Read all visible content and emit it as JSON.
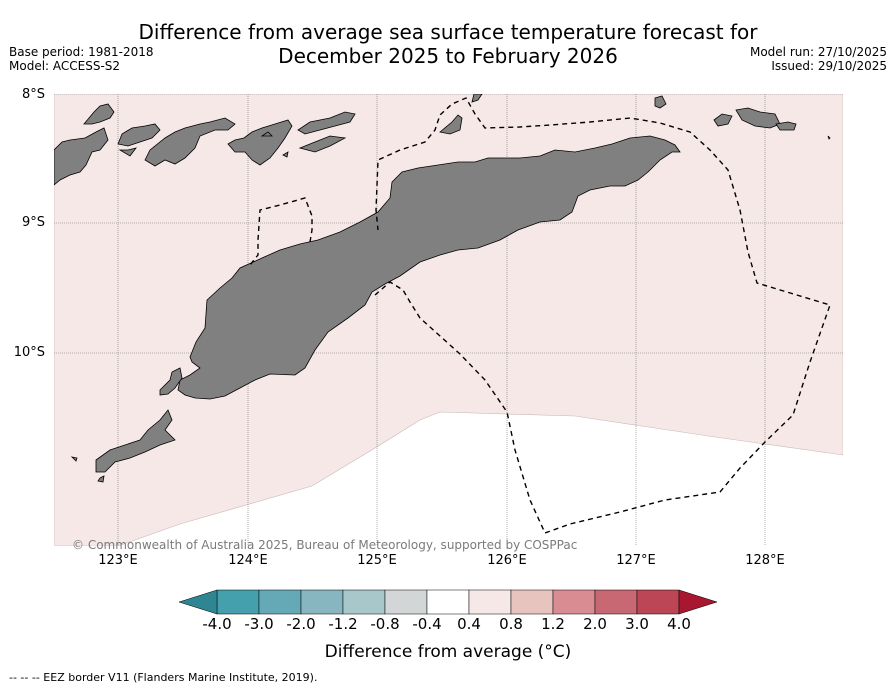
{
  "title_line1": "Difference from average sea surface temperature forecast for",
  "title_line2": "December 2025 to February 2026",
  "base_period": "Base period: 1981-2018",
  "model": "Model: ACCESS-S2",
  "model_run": "Model run: 27/10/2025",
  "issued": "Issued: 29/10/2025",
  "lat_labels": [
    "8°S",
    "9°S",
    "10°S"
  ],
  "lon_labels": [
    "123°E",
    "124°E",
    "125°E",
    "126°E",
    "127°E",
    "128°E"
  ],
  "copyright": "© Commonwealth of Australia 2025, Bureau of Meteorology, supported by COSPPac",
  "colorbar": {
    "ticks": [
      "-4.0",
      "-3.0",
      "-2.0",
      "-1.2",
      "-0.8",
      "-0.4",
      "0.4",
      "0.8",
      "1.2",
      "2.0",
      "3.0",
      "4.0"
    ],
    "colors": [
      "#45a0ad",
      "#66a9b6",
      "#87b6c0",
      "#a8c7ca",
      "#d2d6d7",
      "#ffffff",
      "#f5e8e6",
      "#e8c4bf",
      "#d98d93",
      "#c86872",
      "#bd4656"
    ],
    "under_color": "#2f8592",
    "over_color": "#a8172f",
    "label": "Difference from average (°C)"
  },
  "map": {
    "sea_anomaly_color": "#f5e8e6",
    "land_color": "#808080"
  },
  "legend": "--  --  -- EEZ border V11 (Flanders Marine Institute, 2019)."
}
